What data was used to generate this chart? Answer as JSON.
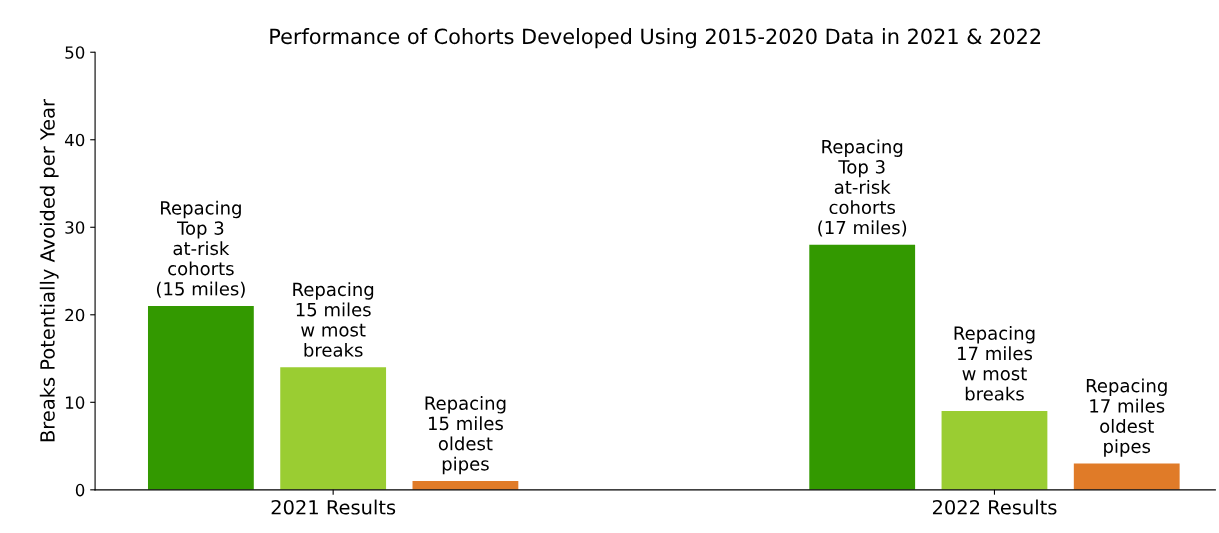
{
  "chart_data": {
    "type": "bar",
    "title": "Performance of Cohorts Developed Using 2015-2020 Data in 2021 & 2022",
    "ylabel": "Breaks Potentially Avoided per Year",
    "categories": [
      "2021 Results",
      "2022 Results"
    ],
    "series": [
      {
        "color": "#339900",
        "values": [
          21,
          28
        ],
        "value_labels": [
          "Repacing\nTop 3\nat-risk\ncohorts\n(15 miles)",
          "Repacing\nTop 3\nat-risk\ncohorts\n(17 miles)"
        ]
      },
      {
        "color": "#9acd32",
        "values": [
          14,
          9
        ],
        "value_labels": [
          "Repacing\n15 miles\nw most\nbreaks",
          "Repacing\n17 miles\nw most\nbreaks"
        ]
      },
      {
        "color": "#e07b28",
        "values": [
          1,
          3
        ],
        "value_labels": [
          "Repacing\n15 miles\noldest\npipes",
          "Repacing\n17 miles\noldest\npipes"
        ]
      }
    ],
    "ylim": [
      0,
      50
    ],
    "yticks": [
      0,
      10,
      20,
      30,
      40,
      50
    ],
    "grid": false
  }
}
